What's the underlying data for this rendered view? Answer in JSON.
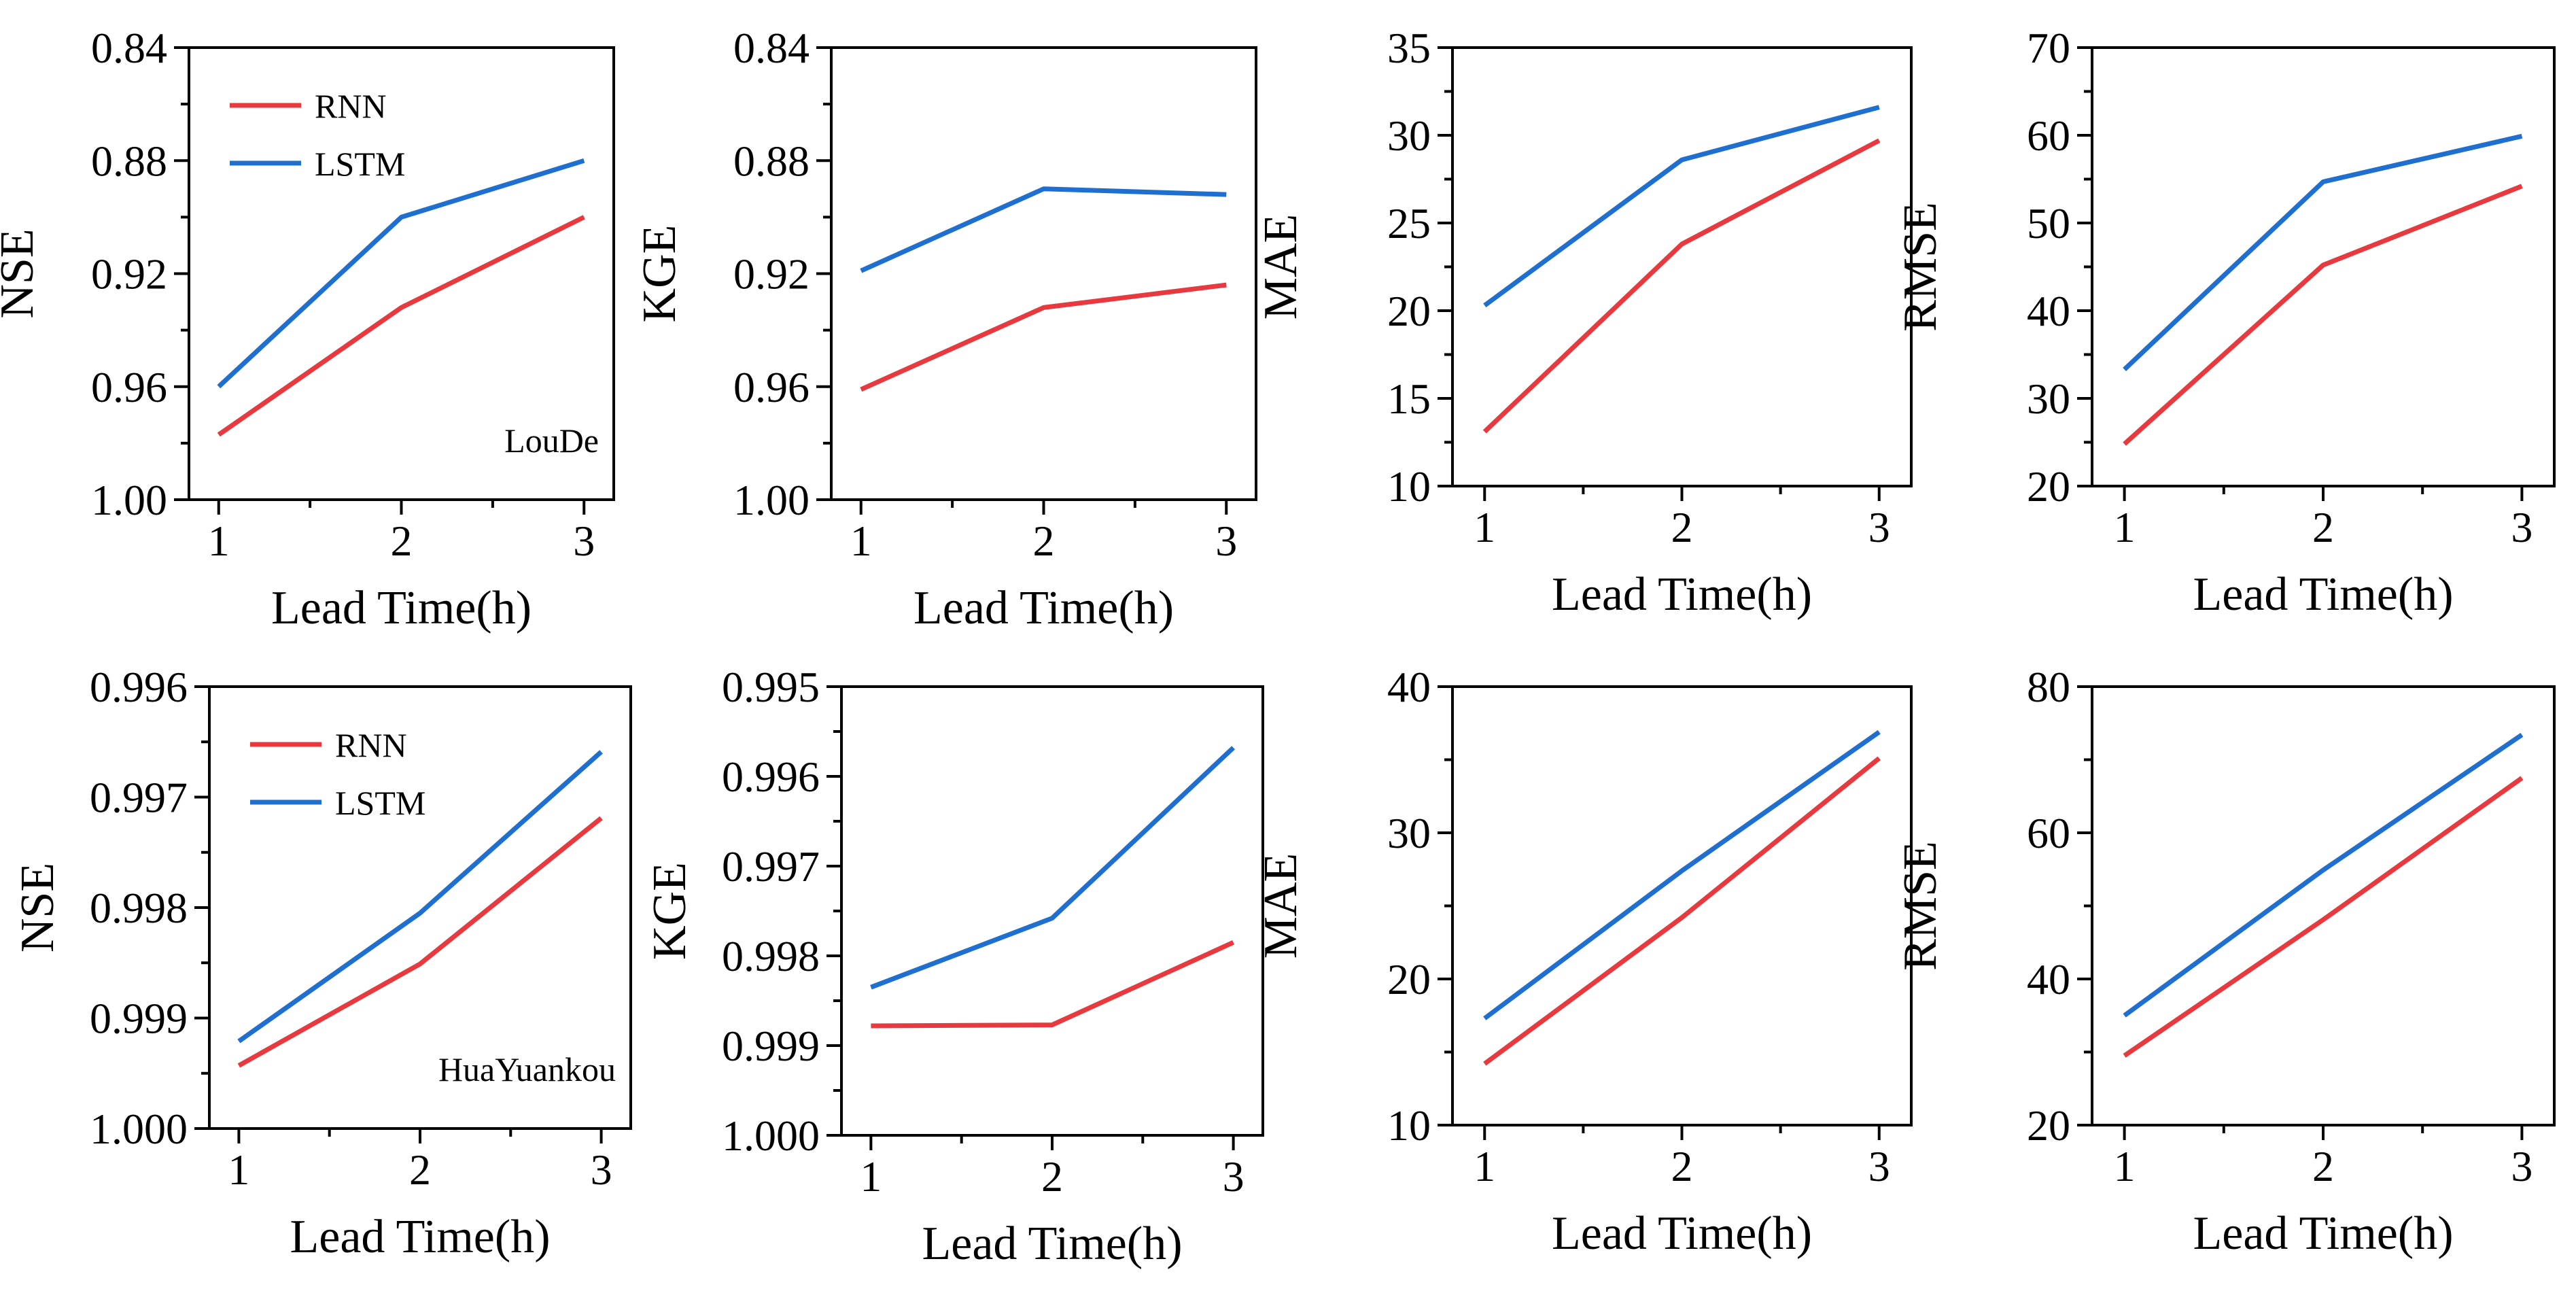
{
  "figure": {
    "colors": {
      "RNN": "#e8393e",
      "LSTM": "#1f6fd1",
      "axis": "#000000"
    },
    "legend_entries": [
      "RNN",
      "LSTM"
    ]
  },
  "chart_data": [
    {
      "type": "line",
      "title": "",
      "station": "LouDe",
      "xlabel": "Lead Time(h)",
      "ylabel": "NSE",
      "x": [
        1,
        2,
        3
      ],
      "xticklabels": [
        "1",
        "2",
        "3"
      ],
      "ylim": [
        1.0,
        0.84
      ],
      "yticks": [
        0.84,
        0.88,
        0.92,
        0.96,
        1.0
      ],
      "yticklabels": [
        "0.84",
        "0.88",
        "0.92",
        "0.96",
        "1.00"
      ],
      "legend": "top-left",
      "series": [
        {
          "name": "RNN",
          "values": [
            0.977,
            0.932,
            0.9
          ]
        },
        {
          "name": "LSTM",
          "values": [
            0.96,
            0.9,
            0.88
          ]
        }
      ]
    },
    {
      "type": "line",
      "title": "",
      "station": "",
      "xlabel": "Lead Time(h)",
      "ylabel": "KGE",
      "x": [
        1,
        2,
        3
      ],
      "xticklabels": [
        "1",
        "2",
        "3"
      ],
      "ylim": [
        1.0,
        0.84
      ],
      "yticks": [
        0.84,
        0.88,
        0.92,
        0.96,
        1.0
      ],
      "yticklabels": [
        "0.84",
        "0.88",
        "0.92",
        "0.96",
        "1.00"
      ],
      "legend": "",
      "series": [
        {
          "name": "RNN",
          "values": [
            0.961,
            0.932,
            0.924
          ]
        },
        {
          "name": "LSTM",
          "values": [
            0.919,
            0.89,
            0.892
          ]
        }
      ]
    },
    {
      "type": "line",
      "title": "",
      "station": "",
      "xlabel": "Lead Time(h)",
      "ylabel": "MAE",
      "x": [
        1,
        2,
        3
      ],
      "xticklabels": [
        "1",
        "2",
        "3"
      ],
      "ylim": [
        10,
        35
      ],
      "yticks": [
        10,
        15,
        20,
        25,
        30,
        35
      ],
      "yticklabels": [
        "10",
        "15",
        "20",
        "25",
        "30",
        "35"
      ],
      "legend": "",
      "series": [
        {
          "name": "RNN",
          "values": [
            13.1,
            23.8,
            29.7
          ]
        },
        {
          "name": "LSTM",
          "values": [
            20.3,
            28.6,
            31.6
          ]
        }
      ]
    },
    {
      "type": "line",
      "title": "",
      "station": "",
      "xlabel": "Lead Time(h)",
      "ylabel": "RMSE",
      "x": [
        1,
        2,
        3
      ],
      "xticklabels": [
        "1",
        "2",
        "3"
      ],
      "ylim": [
        20,
        70
      ],
      "yticks": [
        20,
        30,
        40,
        50,
        60,
        70
      ],
      "yticklabels": [
        "20",
        "30",
        "40",
        "50",
        "60",
        "70"
      ],
      "legend": "",
      "series": [
        {
          "name": "RNN",
          "values": [
            24.8,
            45.2,
            54.2
          ]
        },
        {
          "name": "LSTM",
          "values": [
            33.3,
            54.7,
            59.9
          ]
        }
      ]
    },
    {
      "type": "line",
      "title": "",
      "station": "HuaYuankou",
      "xlabel": "Lead Time(h)",
      "ylabel": "NSE",
      "x": [
        1,
        2,
        3
      ],
      "xticklabels": [
        "1",
        "2",
        "3"
      ],
      "ylim": [
        1.0,
        0.996
      ],
      "yticks": [
        0.996,
        0.997,
        0.998,
        0.999,
        1.0
      ],
      "yticklabels": [
        "0.996",
        "0.997",
        "0.998",
        "0.999",
        "1.000"
      ],
      "legend": "top-left",
      "series": [
        {
          "name": "RNN",
          "values": [
            0.99943,
            0.99851,
            0.99719
          ]
        },
        {
          "name": "LSTM",
          "values": [
            0.99921,
            0.99805,
            0.99659
          ]
        }
      ]
    },
    {
      "type": "line",
      "title": "",
      "station": "",
      "xlabel": "Lead Time(h)",
      "ylabel": "KGE",
      "x": [
        1,
        2,
        3
      ],
      "xticklabels": [
        "1",
        "2",
        "3"
      ],
      "ylim": [
        1.0,
        0.995
      ],
      "yticks": [
        0.995,
        0.996,
        0.997,
        0.998,
        0.999,
        1.0
      ],
      "yticklabels": [
        "0.995",
        "0.996",
        "0.997",
        "0.998",
        "0.999",
        "1.000"
      ],
      "legend": "",
      "series": [
        {
          "name": "RNN",
          "values": [
            0.99878,
            0.99877,
            0.99785
          ]
        },
        {
          "name": "LSTM",
          "values": [
            0.99835,
            0.99758,
            0.99568
          ]
        }
      ]
    },
    {
      "type": "line",
      "title": "",
      "station": "",
      "xlabel": "Lead Time(h)",
      "ylabel": "MAE",
      "x": [
        1,
        2,
        3
      ],
      "xticklabels": [
        "1",
        "2",
        "3"
      ],
      "ylim": [
        10,
        40
      ],
      "yticks": [
        10,
        20,
        30,
        40
      ],
      "yticklabels": [
        "10",
        "20",
        "30",
        "40"
      ],
      "legend": "",
      "series": [
        {
          "name": "RNN",
          "values": [
            14.2,
            24.2,
            35.1
          ]
        },
        {
          "name": "LSTM",
          "values": [
            17.3,
            27.4,
            36.9
          ]
        }
      ]
    },
    {
      "type": "line",
      "title": "",
      "station": "",
      "xlabel": "Lead Time(h)",
      "ylabel": "RMSE",
      "x": [
        1,
        2,
        3
      ],
      "xticklabels": [
        "1",
        "2",
        "3"
      ],
      "ylim": [
        20,
        80
      ],
      "yticks": [
        20,
        40,
        60,
        80
      ],
      "yticklabels": [
        "20",
        "40",
        "60",
        "80"
      ],
      "legend": "",
      "series": [
        {
          "name": "RNN",
          "values": [
            29.5,
            48.1,
            67.5
          ]
        },
        {
          "name": "LSTM",
          "values": [
            35.0,
            54.9,
            73.4
          ]
        }
      ]
    }
  ]
}
